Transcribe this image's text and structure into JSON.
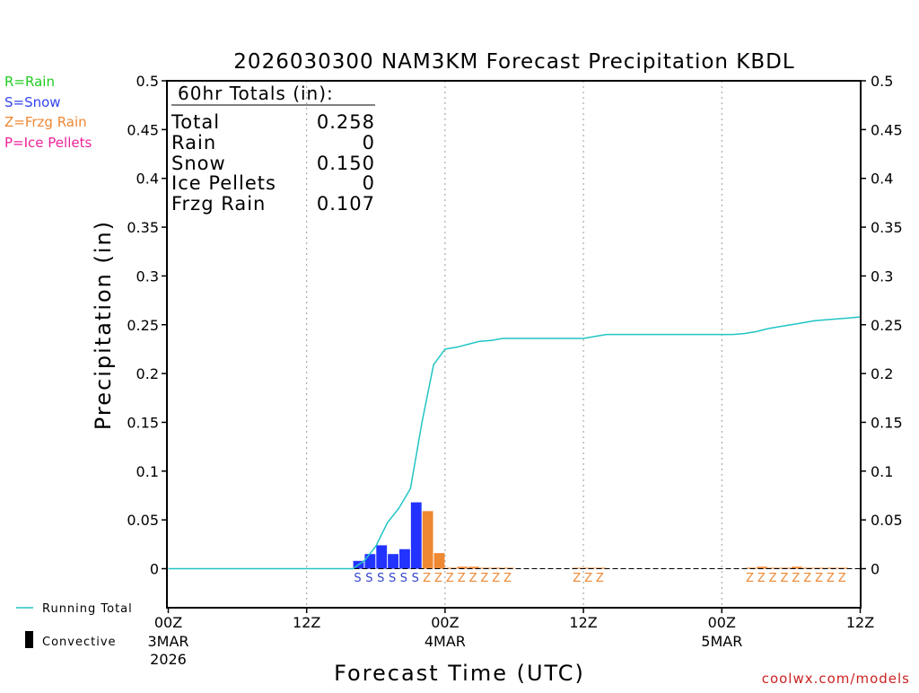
{
  "chart_data": {
    "type": "bar",
    "title": "2026030300 NAM3KM Forecast Precipitation KBDL",
    "ylabel": "Precipitation (in)",
    "xlabel": "Forecast Time (UTC)",
    "ylim": [
      -0.04,
      0.5
    ],
    "xlim": [
      0,
      60
    ],
    "yticks": [
      0,
      0.05,
      0.1,
      0.15,
      0.2,
      0.25,
      0.3,
      0.35,
      0.4,
      0.45,
      0.5
    ],
    "ytick_labels": [
      "0",
      "0.05",
      "0.1",
      "0.15",
      "0.2",
      "0.25",
      "0.3",
      "0.35",
      "0.4",
      "0.45",
      "0.5"
    ],
    "xticks": [
      {
        "hour": 0,
        "label": "00Z",
        "date": "3MAR",
        "year": "2026"
      },
      {
        "hour": 12,
        "label": "12Z",
        "date": "",
        "year": ""
      },
      {
        "hour": 24,
        "label": "00Z",
        "date": "4MAR",
        "year": ""
      },
      {
        "hour": 36,
        "label": "12Z",
        "date": "",
        "year": ""
      },
      {
        "hour": 48,
        "label": "00Z",
        "date": "5MAR",
        "year": ""
      },
      {
        "hour": 60,
        "label": "12Z",
        "date": "",
        "year": ""
      }
    ],
    "type_legend": [
      {
        "label": "R=Rain",
        "color": "#22cc22"
      },
      {
        "label": "S=Snow",
        "color": "#3344ee"
      },
      {
        "label": "Z=Frzg Rain",
        "color": "#ee8833"
      },
      {
        "label": "P=Ice Pellets",
        "color": "#ee2299"
      }
    ],
    "totals": {
      "heading": "60hr Totals (in):",
      "rows": [
        {
          "label": "Total",
          "value": "0.258"
        },
        {
          "label": "Rain",
          "value": "0"
        },
        {
          "label": "Snow",
          "value": "0.150"
        },
        {
          "label": "Ice Pellets",
          "value": "0"
        },
        {
          "label": "Frzg Rain",
          "value": "0.107"
        }
      ]
    },
    "bars": [
      {
        "hour": 17,
        "value": 0.008,
        "ptype": "S"
      },
      {
        "hour": 18,
        "value": 0.015,
        "ptype": "S"
      },
      {
        "hour": 19,
        "value": 0.024,
        "ptype": "S"
      },
      {
        "hour": 20,
        "value": 0.015,
        "ptype": "S"
      },
      {
        "hour": 21,
        "value": 0.02,
        "ptype": "S"
      },
      {
        "hour": 22,
        "value": 0.068,
        "ptype": "S"
      },
      {
        "hour": 23,
        "value": 0.059,
        "ptype": "Z"
      },
      {
        "hour": 24,
        "value": 0.016,
        "ptype": "Z"
      },
      {
        "hour": 25,
        "value": 0.001,
        "ptype": "Z"
      },
      {
        "hour": 26,
        "value": 0.002,
        "ptype": "Z"
      },
      {
        "hour": 27,
        "value": 0.002,
        "ptype": "Z"
      },
      {
        "hour": 28,
        "value": 0.001,
        "ptype": "Z"
      },
      {
        "hour": 29,
        "value": 0.001,
        "ptype": "Z"
      },
      {
        "hour": 30,
        "value": 0.001,
        "ptype": "Z"
      },
      {
        "hour": 36,
        "value": 0.0005,
        "ptype": "Z"
      },
      {
        "hour": 37,
        "value": 0.001,
        "ptype": "Z"
      },
      {
        "hour": 38,
        "value": 0.001,
        "ptype": "Z"
      },
      {
        "hour": 51,
        "value": 0.001,
        "ptype": "Z"
      },
      {
        "hour": 52,
        "value": 0.002,
        "ptype": "Z"
      },
      {
        "hour": 53,
        "value": 0.001,
        "ptype": "Z"
      },
      {
        "hour": 54,
        "value": 0.001,
        "ptype": "Z"
      },
      {
        "hour": 55,
        "value": 0.002,
        "ptype": "Z"
      },
      {
        "hour": 56,
        "value": 0.001,
        "ptype": "Z"
      },
      {
        "hour": 57,
        "value": 0.001,
        "ptype": "Z"
      },
      {
        "hour": 58,
        "value": 0.001,
        "ptype": "Z"
      },
      {
        "hour": 59,
        "value": 0.001,
        "ptype": "Z"
      }
    ],
    "running_total": {
      "name": "Running Total",
      "color": "#22c4c4",
      "x": [
        0,
        16,
        17,
        18,
        19,
        20,
        21,
        22,
        23,
        24,
        25,
        26,
        27,
        28,
        29,
        30,
        36,
        37,
        38,
        40,
        42,
        44,
        46,
        48,
        49,
        50,
        51,
        52,
        53,
        54,
        55,
        56,
        57,
        58,
        59,
        60
      ],
      "y": [
        0,
        0,
        0.008,
        0.023,
        0.047,
        0.062,
        0.082,
        0.15,
        0.209,
        0.225,
        0.227,
        0.23,
        0.233,
        0.234,
        0.236,
        0.236,
        0.236,
        0.238,
        0.24,
        0.24,
        0.24,
        0.24,
        0.24,
        0.24,
        0.24,
        0.241,
        0.243,
        0.246,
        0.248,
        0.25,
        0.252,
        0.254,
        0.255,
        0.256,
        0.257,
        0.258
      ]
    },
    "series_legend": [
      {
        "name": "Running Total",
        "color": "#22c4c4"
      },
      {
        "name": "Convective",
        "color": "#000000"
      }
    ],
    "colors": {
      "snow": "#2233ff",
      "frzg": "#ee8833",
      "snow_label": "#3344cc",
      "frzg_label": "#ee8833"
    },
    "credit": "coolwx.com/models"
  }
}
